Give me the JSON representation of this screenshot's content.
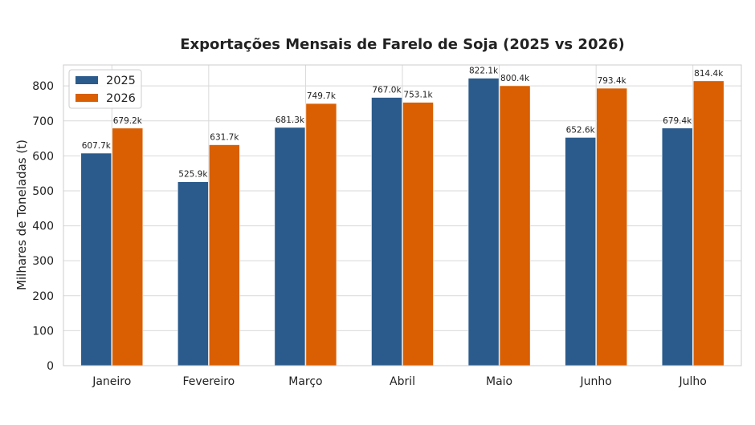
{
  "chart_data": {
    "type": "bar",
    "title": "Exportações Mensais de Farelo de Soja (2025 vs 2026)",
    "xlabel": "",
    "ylabel": "Milhares de Toneladas (t)",
    "categories": [
      "Janeiro",
      "Fevereiro",
      "Março",
      "Abril",
      "Maio",
      "Junho",
      "Julho"
    ],
    "series": [
      {
        "name": "2025",
        "color": "#2b5b8c",
        "values": [
          607.7,
          525.9,
          681.3,
          767.0,
          822.1,
          652.6,
          679.4
        ],
        "labels": [
          "607.7k",
          "525.9k",
          "681.3k",
          "767.0k",
          "822.1k",
          "652.6k",
          "679.4k"
        ]
      },
      {
        "name": "2026",
        "color": "#d95f02",
        "values": [
          679.2,
          631.7,
          749.7,
          753.1,
          800.4,
          793.4,
          814.4
        ],
        "labels": [
          "679.2k",
          "631.7k",
          "749.7k",
          "753.1k",
          "800.4k",
          "793.4k",
          "814.4k"
        ]
      }
    ],
    "ylim": [
      0,
      860
    ],
    "yticks": [
      "0",
      "100",
      "200",
      "300",
      "400",
      "500",
      "600",
      "700",
      "800"
    ],
    "grid": true,
    "legend_position": "top-left"
  }
}
